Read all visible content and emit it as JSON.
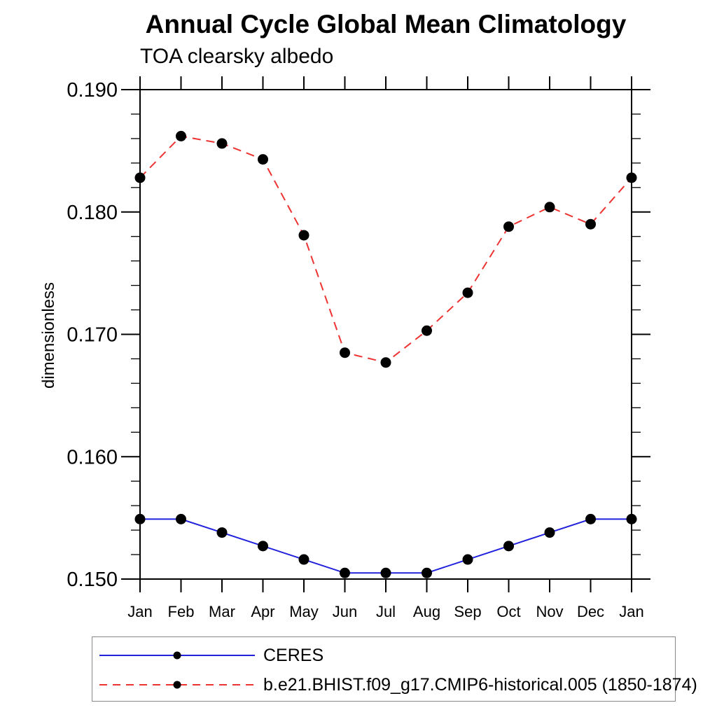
{
  "chart_data": {
    "type": "line",
    "title": "Annual Cycle Global Mean Climatology",
    "subtitle": "TOA clearsky albedo",
    "ylabel": "dimensionless",
    "xlabel": "",
    "categories": [
      "Jan",
      "Feb",
      "Mar",
      "Apr",
      "May",
      "Jun",
      "Jul",
      "Aug",
      "Sep",
      "Oct",
      "Nov",
      "Dec",
      "Jan"
    ],
    "ylim": [
      0.15,
      0.19
    ],
    "y_major_ticks": [
      0.15,
      0.16,
      0.17,
      0.18,
      0.19
    ],
    "y_tick_labels": [
      "0.150",
      "0.160",
      "0.170",
      "0.180",
      "0.190"
    ],
    "y_minor_step": 0.002,
    "grid": false,
    "legend_position": "bottom",
    "axis_color": "#000000",
    "marker_shape": "filled-circle",
    "series": [
      {
        "name": "CERES",
        "color": "#2222dd",
        "line_style": "solid",
        "marker_color": "#000000",
        "values": [
          0.1549,
          0.1549,
          0.1538,
          0.1527,
          0.1516,
          0.1505,
          0.1505,
          0.1505,
          0.1516,
          0.1527,
          0.1538,
          0.1549,
          0.1549
        ]
      },
      {
        "name": "b.e21.BHIST.f09_g17.CMIP6-historical.005 (1850-1874)",
        "color": "#ee3333",
        "line_style": "dashed",
        "marker_color": "#000000",
        "values": [
          0.1828,
          0.1862,
          0.1856,
          0.1843,
          0.1781,
          0.1685,
          0.1677,
          0.1703,
          0.1734,
          0.1788,
          0.1804,
          0.179,
          0.1828
        ]
      }
    ]
  }
}
